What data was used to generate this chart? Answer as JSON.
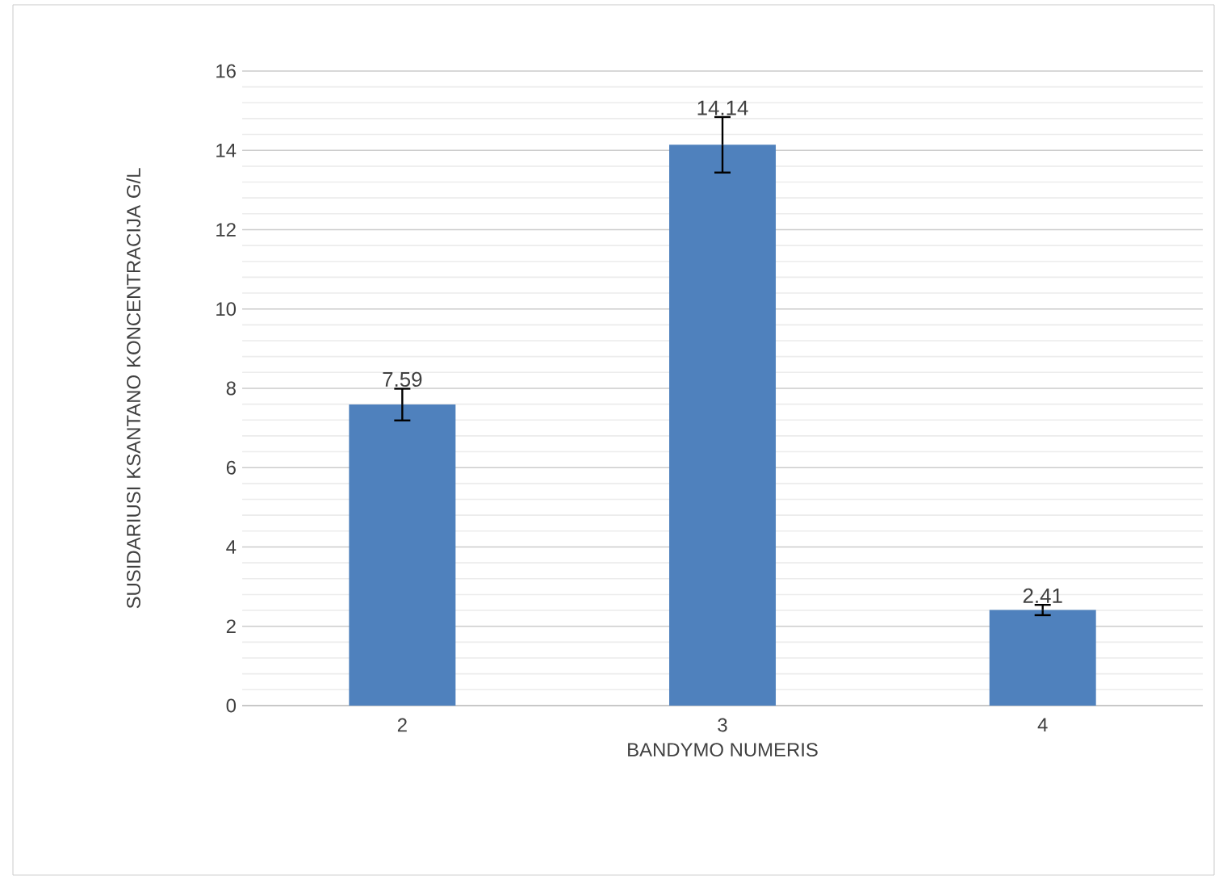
{
  "chart_data": {
    "type": "bar",
    "xlabel": "BANDYMO NUMERIS",
    "ylabel": "SUSIDARIUSI KSANTANO KONCENTRACIJA G/L",
    "categories": [
      "2",
      "3",
      "4"
    ],
    "values": [
      7.59,
      14.14,
      2.41
    ],
    "errors": [
      0.4,
      0.7,
      0.13
    ],
    "color": "#4f81bd",
    "ylim": [
      0,
      16
    ],
    "yticks": [
      0,
      2,
      4,
      6,
      8,
      10,
      12,
      14,
      16
    ],
    "grid": "y",
    "data_labels": true
  }
}
